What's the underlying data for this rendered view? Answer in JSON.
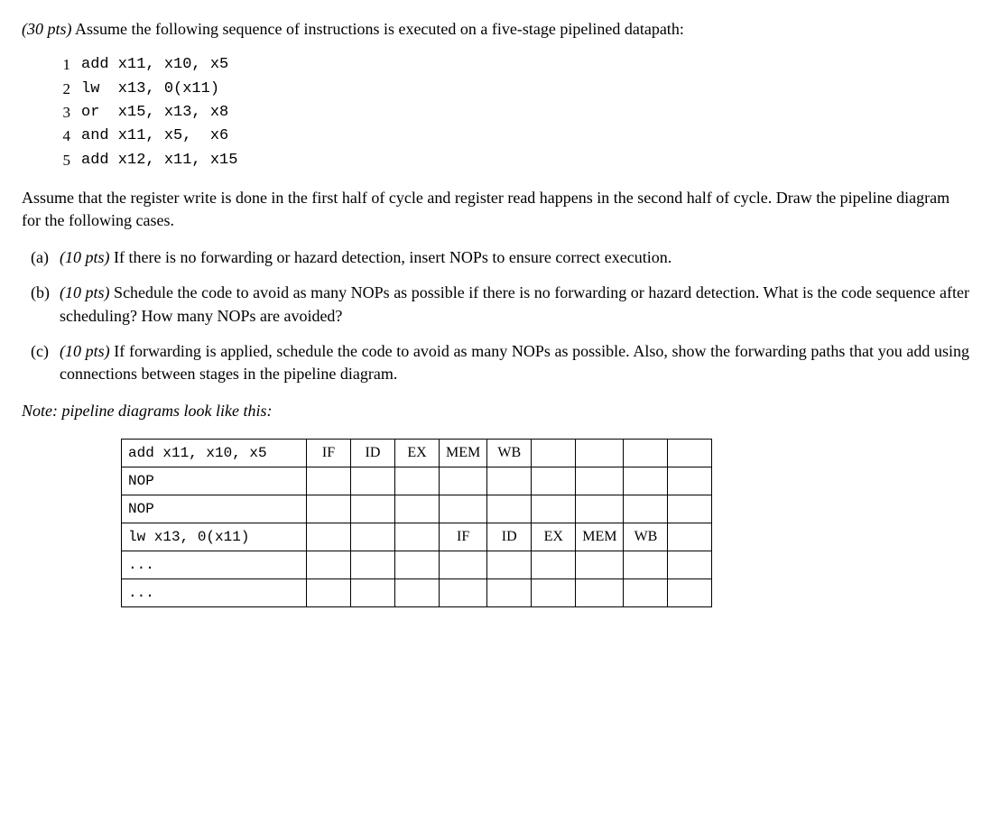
{
  "intro": {
    "points": "(30 pts)",
    "text_before": " Assume the following sequence of instructions is executed on a five-stage pipelined datapath:"
  },
  "code": [
    {
      "n": "1",
      "t": "add x11, x10, x5"
    },
    {
      "n": "2",
      "t": "lw  x13, 0(x11)"
    },
    {
      "n": "3",
      "t": "or  x15, x13, x8"
    },
    {
      "n": "4",
      "t": "and x11, x5,  x6"
    },
    {
      "n": "5",
      "t": "add x12, x11, x15"
    }
  ],
  "para2": "Assume that the register write is done in the first half of cycle and register read happens in the second half of cycle. Draw the pipeline diagram for the following cases.",
  "parts": {
    "a": {
      "lbl": "(a)",
      "pts": "(10 pts)",
      "txt": " If there is no forwarding or hazard detection, insert NOPs to ensure correct execution."
    },
    "b": {
      "lbl": "(b)",
      "pts": "(10 pts)",
      "txt": " Schedule the code to avoid as many NOPs as possible if there is no forwarding or hazard detection. What is the code sequence after scheduling? How many NOPs are avoided?"
    },
    "c": {
      "lbl": "(c)",
      "pts": "(10 pts)",
      "txt": " If forwarding is applied, schedule the code to avoid as many NOPs as possible. Also, show the forwarding paths that you add using connections between stages in the pipeline diagram."
    }
  },
  "note": "Note: pipeline diagrams look like this:",
  "table": {
    "rows": [
      {
        "instr": "add x11, x10, x5",
        "cells": [
          "IF",
          "ID",
          "EX",
          "MEM",
          "WB",
          "",
          "",
          "",
          ""
        ]
      },
      {
        "instr": "NOP",
        "cells": [
          "",
          "",
          "",
          "",
          "",
          "",
          "",
          "",
          ""
        ]
      },
      {
        "instr": "NOP",
        "cells": [
          "",
          "",
          "",
          "",
          "",
          "",
          "",
          "",
          ""
        ]
      },
      {
        "instr": "lw x13, 0(x11)",
        "cells": [
          "",
          "",
          "",
          "IF",
          "ID",
          "EX",
          "MEM",
          "WB",
          ""
        ]
      },
      {
        "instr": "...",
        "cells": [
          "",
          "",
          "",
          "",
          "",
          "",
          "",
          "",
          ""
        ]
      },
      {
        "instr": "...",
        "cells": [
          "",
          "",
          "",
          "",
          "",
          "",
          "",
          "",
          ""
        ]
      }
    ]
  }
}
